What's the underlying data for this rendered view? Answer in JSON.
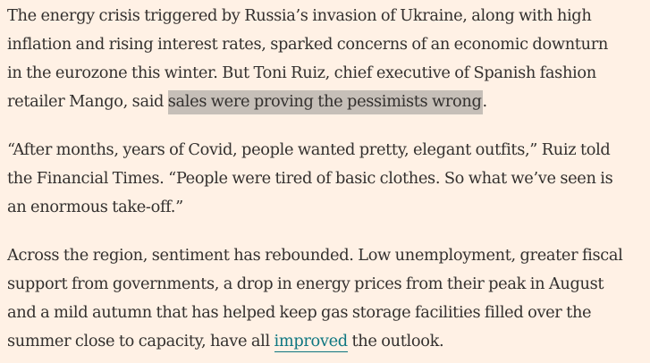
{
  "article": {
    "paragraphs": [
      {
        "lines": [
          "The energy crisis triggered by Russia’s invasion of Ukraine, along with high",
          "inflation and rising interest rates, sparked concerns of an economic downturn",
          "in the eurozone this winter. But Toni Ruiz, chief executive of Spanish fashion"
        ],
        "last_line_before": "retailer Mango, said ",
        "highlighted": "sales were proving the pessimists wrong",
        "last_line_after": "."
      },
      {
        "lines": [
          "“After months, years of Covid, people wanted pretty, elegant outfits,” Ruiz told",
          "the Financial Times. “People were tired of basic clothes. So what we’ve seen is",
          "an enormous take-off.”"
        ]
      },
      {
        "lines": [
          "Across the region, sentiment has rebounded. Low unemployment, greater fiscal",
          "support from governments, a drop in energy prices from their peak in August",
          "and a mild autumn that has helped keep gas storage facilities filled over the"
        ],
        "last_line_before": "summer close to capacity, have all ",
        "link_text": "improved",
        "last_line_after": " the outlook."
      }
    ]
  }
}
